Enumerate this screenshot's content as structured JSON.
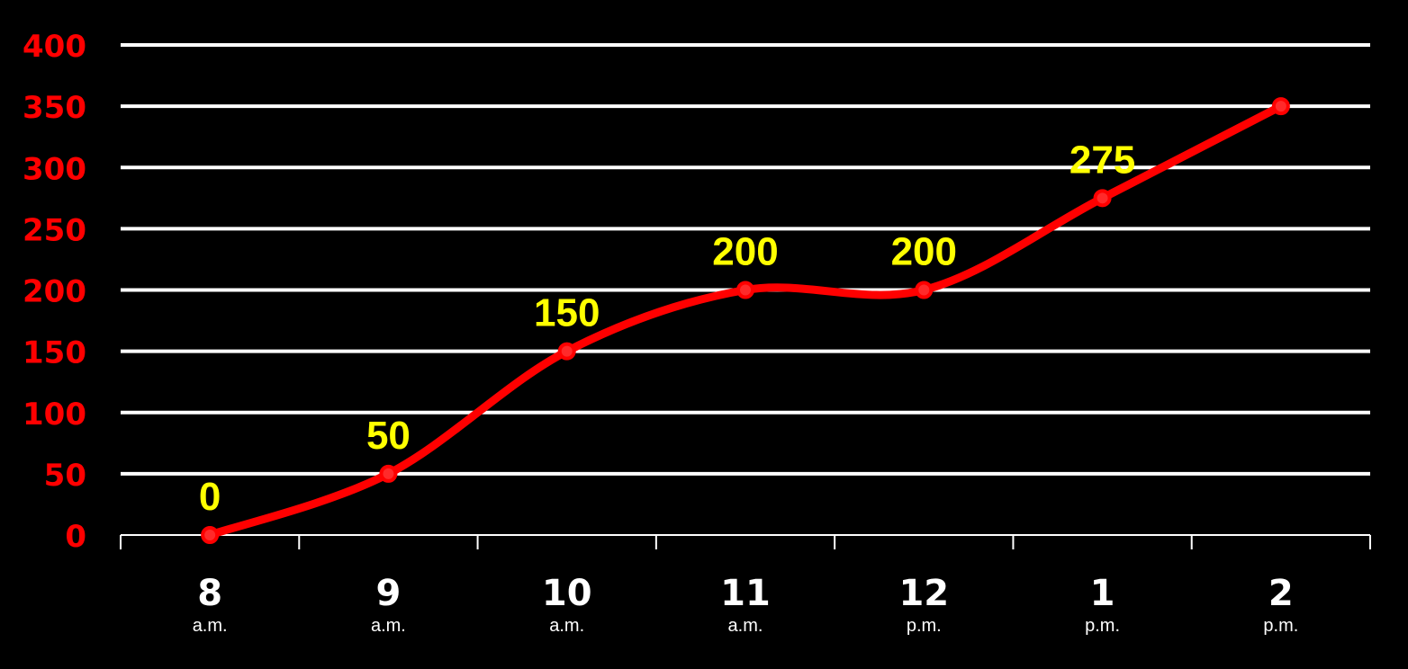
{
  "chart_data": {
    "type": "line",
    "categories": [
      {
        "hour": "8",
        "period": "a.m."
      },
      {
        "hour": "9",
        "period": "a.m."
      },
      {
        "hour": "10",
        "period": "a.m."
      },
      {
        "hour": "11",
        "period": "a.m."
      },
      {
        "hour": "12",
        "period": "p.m."
      },
      {
        "hour": "1",
        "period": "p.m."
      },
      {
        "hour": "2",
        "period": "p.m."
      }
    ],
    "series": [
      {
        "values": [
          0,
          50,
          150,
          200,
          200,
          275,
          350
        ],
        "data_labels": [
          "0",
          "50",
          "150",
          "200",
          "200",
          "275",
          ""
        ]
      }
    ],
    "y_ticks": [
      "0",
      "50",
      "100",
      "150",
      "200",
      "250",
      "300",
      "350",
      "400"
    ],
    "ylim": [
      0,
      400
    ],
    "grid": "horizontal",
    "smooth": true,
    "colors": {
      "background": "#000000",
      "line": "#ff0000",
      "marker_fill": "#ff2a2a",
      "grid": "#ffffff",
      "y_tick_labels": "#ff0000",
      "x_tick_labels": "#ffffff",
      "data_labels": "#ffff00"
    }
  }
}
